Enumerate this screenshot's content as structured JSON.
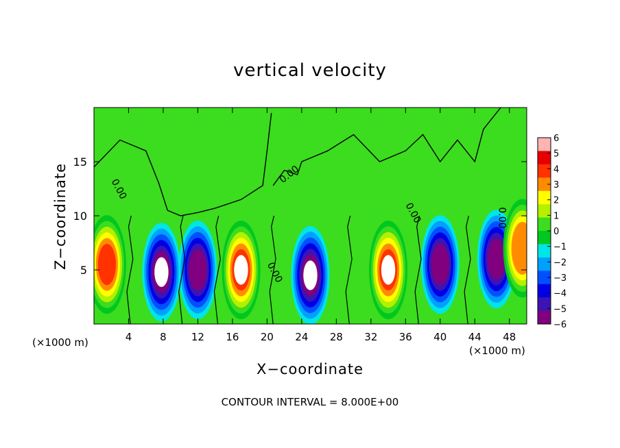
{
  "chart_data": {
    "type": "heatmap",
    "title": "vertical velocity",
    "xlabel": "X−coordinate",
    "ylabel": "Z−coordinate",
    "x_unit_label": "(×1000 m)",
    "footnote": "CONTOUR INTERVAL = 8.000E+00",
    "xlim": [
      0,
      50
    ],
    "ylim": [
      0,
      20
    ],
    "x_ticks": [
      4,
      8,
      12,
      16,
      20,
      24,
      28,
      32,
      36,
      40,
      44,
      48
    ],
    "x_tick_labels": [
      "4",
      "8",
      "12",
      "16",
      "20",
      "24",
      "28",
      "32",
      "36",
      "40",
      "44",
      "48"
    ],
    "y_ticks": [
      5,
      10,
      15
    ],
    "y_tick_labels": [
      "5",
      "10",
      "15"
    ],
    "colorbar": {
      "levels": [
        -6,
        -5,
        -4,
        -3,
        -2,
        -1,
        0,
        1,
        2,
        3,
        4,
        5,
        6
      ],
      "labels": [
        "6",
        "5",
        "4",
        "3",
        "2",
        "1",
        "0",
        "−1",
        "−2",
        "−3",
        "−4",
        "−5",
        "−6"
      ],
      "colors": [
        "#800080",
        "#3c14b4",
        "#0000e6",
        "#0050ff",
        "#00a0ff",
        "#00e6e6",
        "#00c81e",
        "#3cdc1e",
        "#b4f000",
        "#ffff00",
        "#ff8c00",
        "#ff3200",
        "#e60000",
        "#ffb4b4"
      ]
    },
    "contour_labels": [
      "0.00",
      "0.00",
      "0.00",
      "0.00",
      "0.00",
      "0.00"
    ],
    "cells": [
      {
        "x": 1.5,
        "z": 5.5,
        "w": 5.5
      },
      {
        "x": 7.8,
        "z": 4.8,
        "w": -6.5
      },
      {
        "x": 12.0,
        "z": 5.0,
        "w": -6.0
      },
      {
        "x": 17.0,
        "z": 5.0,
        "w": 6.5
      },
      {
        "x": 25.0,
        "z": 4.5,
        "w": -6.5
      },
      {
        "x": 34.0,
        "z": 5.0,
        "w": 6.5
      },
      {
        "x": 40.0,
        "z": 5.5,
        "w": -6.0
      },
      {
        "x": 46.5,
        "z": 6.0,
        "w": -6.0
      },
      {
        "x": 49.5,
        "z": 7.0,
        "w": 4.0
      }
    ]
  }
}
